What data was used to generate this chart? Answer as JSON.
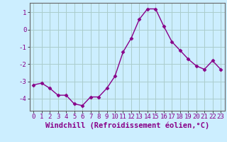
{
  "x": [
    0,
    1,
    2,
    3,
    4,
    5,
    6,
    7,
    8,
    9,
    10,
    11,
    12,
    13,
    14,
    15,
    16,
    17,
    18,
    19,
    20,
    21,
    22,
    23
  ],
  "y": [
    -3.2,
    -3.1,
    -3.4,
    -3.8,
    -3.8,
    -4.3,
    -4.4,
    -3.9,
    -3.9,
    -3.4,
    -2.7,
    -1.3,
    -0.5,
    0.6,
    1.2,
    1.2,
    0.2,
    -0.7,
    -1.2,
    -1.7,
    -2.1,
    -2.3,
    -1.8,
    -2.3
  ],
  "line_color": "#880088",
  "marker": "D",
  "marker_size": 2.5,
  "background_color": "#cceeff",
  "grid_color": "#aacccc",
  "xlabel": "Windchill (Refroidissement éolien,°C)",
  "xlabel_fontsize": 7.5,
  "yticks": [
    -4,
    -3,
    -2,
    -1,
    0,
    1
  ],
  "ytick_labels": [
    "-4",
    "-3",
    "-2",
    "-1",
    "0",
    "1"
  ],
  "xticks": [
    0,
    1,
    2,
    3,
    4,
    5,
    6,
    7,
    8,
    9,
    10,
    11,
    12,
    13,
    14,
    15,
    16,
    17,
    18,
    19,
    20,
    21,
    22,
    23
  ],
  "xlim": [
    -0.5,
    23.5
  ],
  "ylim": [
    -4.7,
    1.55
  ],
  "tick_color": "#880088",
  "tick_fontsize": 6.5,
  "spine_color": "#666666",
  "linewidth": 1.0
}
